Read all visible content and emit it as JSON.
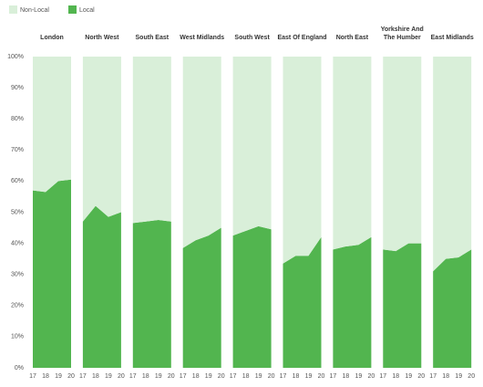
{
  "chart_data": {
    "type": "area",
    "series": [
      {
        "name": "Non-Local",
        "color": "#d9efd9"
      },
      {
        "name": "Local",
        "color": "#52b54f"
      }
    ],
    "x": [
      "17",
      "18",
      "19",
      "20"
    ],
    "ylim": [
      0,
      100
    ],
    "yticks": [
      {
        "value": 0,
        "label": "0%"
      },
      {
        "value": 10,
        "label": "10%"
      },
      {
        "value": 20,
        "label": "20%"
      },
      {
        "value": 30,
        "label": "30%"
      },
      {
        "value": 40,
        "label": "40%"
      },
      {
        "value": 50,
        "label": "50%"
      },
      {
        "value": 60,
        "label": "60%"
      },
      {
        "value": 70,
        "label": "70%"
      },
      {
        "value": 80,
        "label": "80%"
      },
      {
        "value": 90,
        "label": "90%"
      },
      {
        "value": 100,
        "label": "100%"
      }
    ],
    "panels": [
      {
        "title": "London",
        "values": [
          [
            43,
            43.5,
            40,
            39.5
          ],
          [
            57,
            56.5,
            60,
            60.5
          ]
        ]
      },
      {
        "title": "North West",
        "values": [
          [
            53,
            48,
            51.5,
            50
          ],
          [
            47,
            52,
            48.5,
            50
          ]
        ]
      },
      {
        "title": "South East",
        "values": [
          [
            53.5,
            53,
            52.5,
            53
          ],
          [
            46.5,
            47,
            47.5,
            47
          ]
        ]
      },
      {
        "title": "West Midlands",
        "values": [
          [
            61.5,
            59,
            57.5,
            55
          ],
          [
            38.5,
            41,
            42.5,
            45
          ]
        ]
      },
      {
        "title": "South West",
        "values": [
          [
            57.5,
            56,
            54.5,
            55.5
          ],
          [
            42.5,
            44,
            45.5,
            44.5
          ]
        ]
      },
      {
        "title": "East Of England",
        "values": [
          [
            66.5,
            64,
            64,
            58
          ],
          [
            33.5,
            36,
            36,
            42
          ]
        ]
      },
      {
        "title": "North East",
        "values": [
          [
            62,
            61,
            60.5,
            58
          ],
          [
            38,
            39,
            39.5,
            42
          ]
        ]
      },
      {
        "title": "Yorkshire And The Humber",
        "values": [
          [
            62,
            62.5,
            60,
            60
          ],
          [
            38,
            37.5,
            40,
            40
          ]
        ]
      },
      {
        "title": "East Midlands",
        "values": [
          [
            69,
            65,
            64.5,
            62
          ],
          [
            31,
            35,
            35.5,
            38
          ]
        ]
      }
    ]
  }
}
